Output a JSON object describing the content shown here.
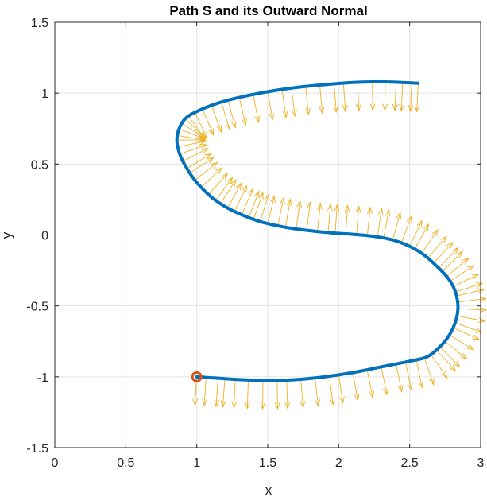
{
  "chart_data": {
    "type": "line",
    "title": "Path S and its Outward Normal",
    "xlabel": "x",
    "ylabel": "y",
    "xlim": [
      0,
      3
    ],
    "ylim": [
      -1.5,
      1.5
    ],
    "xticks": [
      0,
      0.5,
      1,
      1.5,
      2,
      2.5,
      3
    ],
    "xtick_labels": [
      "0",
      "0.5",
      "1",
      "1.5",
      "2",
      "2.5",
      "3"
    ],
    "yticks": [
      -1.5,
      -1,
      -0.5,
      0,
      0.5,
      1,
      1.5
    ],
    "ytick_labels": [
      "-1.5",
      "-1",
      "-0.5",
      "0",
      "0.5",
      "1",
      "1.5"
    ],
    "grid": true,
    "series": [
      {
        "type": "line",
        "color": "#0072BD",
        "x": [
          1.0,
          1.15,
          1.3,
          1.5,
          1.7,
          1.9,
          2.1,
          2.3,
          2.5,
          2.62,
          2.7,
          2.77,
          2.82,
          2.84,
          2.83,
          2.8,
          2.75,
          2.68,
          2.6,
          2.5,
          2.38,
          2.25,
          2.1,
          1.95,
          1.8,
          1.65,
          1.5,
          1.4,
          1.3,
          1.2,
          1.1,
          1.0,
          0.93,
          0.88,
          0.86,
          0.88,
          0.93,
          1.02,
          1.15,
          1.3,
          1.5,
          1.7,
          1.9,
          2.1,
          2.3,
          2.45,
          2.56
        ],
        "y": [
          -1.0,
          -1.01,
          -1.02,
          -1.025,
          -1.02,
          -1.0,
          -0.97,
          -0.93,
          -0.89,
          -0.86,
          -0.8,
          -0.72,
          -0.62,
          -0.52,
          -0.43,
          -0.35,
          -0.28,
          -0.21,
          -0.14,
          -0.08,
          -0.035,
          -0.01,
          0.005,
          0.015,
          0.03,
          0.05,
          0.08,
          0.11,
          0.15,
          0.2,
          0.27,
          0.37,
          0.47,
          0.57,
          0.67,
          0.76,
          0.83,
          0.88,
          0.93,
          0.97,
          1.01,
          1.04,
          1.06,
          1.075,
          1.08,
          1.075,
          1.07
        ]
      },
      {
        "type": "quiver",
        "color": "#EDB120",
        "length": 0.2
      },
      {
        "type": "scatter",
        "marker": "circle",
        "color": "#D95319",
        "x": [
          1.0
        ],
        "y": [
          -1.0
        ]
      }
    ]
  }
}
